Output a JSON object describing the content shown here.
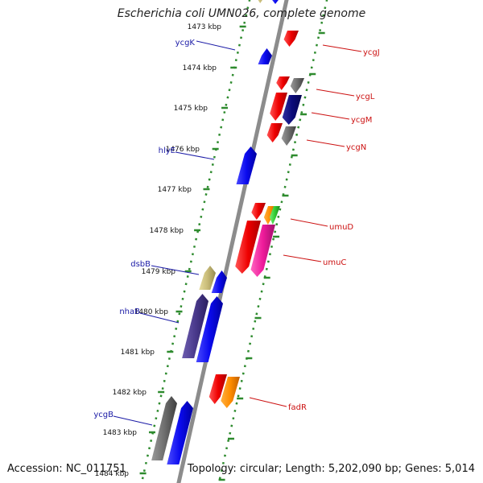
{
  "title": "Escherichia coli UMN026, complete genome",
  "accession": "Accession: NC_011751",
  "summary": "Topology: circular; Length: 5,202,090 bp; Genes: 5,014",
  "ruler_labels": [
    "1473 kbp",
    "1474 kbp",
    "1475 kbp",
    "1476 kbp",
    "1477 kbp",
    "1478 kbp",
    "1479 kbp",
    "1480 kbp",
    "1481 kbp",
    "1482 kbp",
    "1483 kbp",
    "1484 kbp"
  ],
  "gene_labels_left": [
    "ycgK",
    "hlyE",
    "dsbB",
    "nhaB",
    "ycgB"
  ],
  "gene_labels_right": [
    "ycgJ",
    "ycgL",
    "ycgM",
    "ycgN",
    "umuD",
    "umuC",
    "fadR"
  ],
  "colors": {
    "backbone": "#8c8c8c",
    "ruler_ticks": "#2e8b2e",
    "left_label": "#1a1aa6",
    "right_label": "#cc1111",
    "red": "#ee0000",
    "blue": "#0a0aee",
    "gray": "#6e6e6e",
    "navy": "#0a0a7a",
    "khaki": "#c8bb78",
    "purple": "#4a3a8c",
    "orange": "#ff8c00",
    "green": "#33cc33",
    "magenta": "#ee1a9a"
  }
}
